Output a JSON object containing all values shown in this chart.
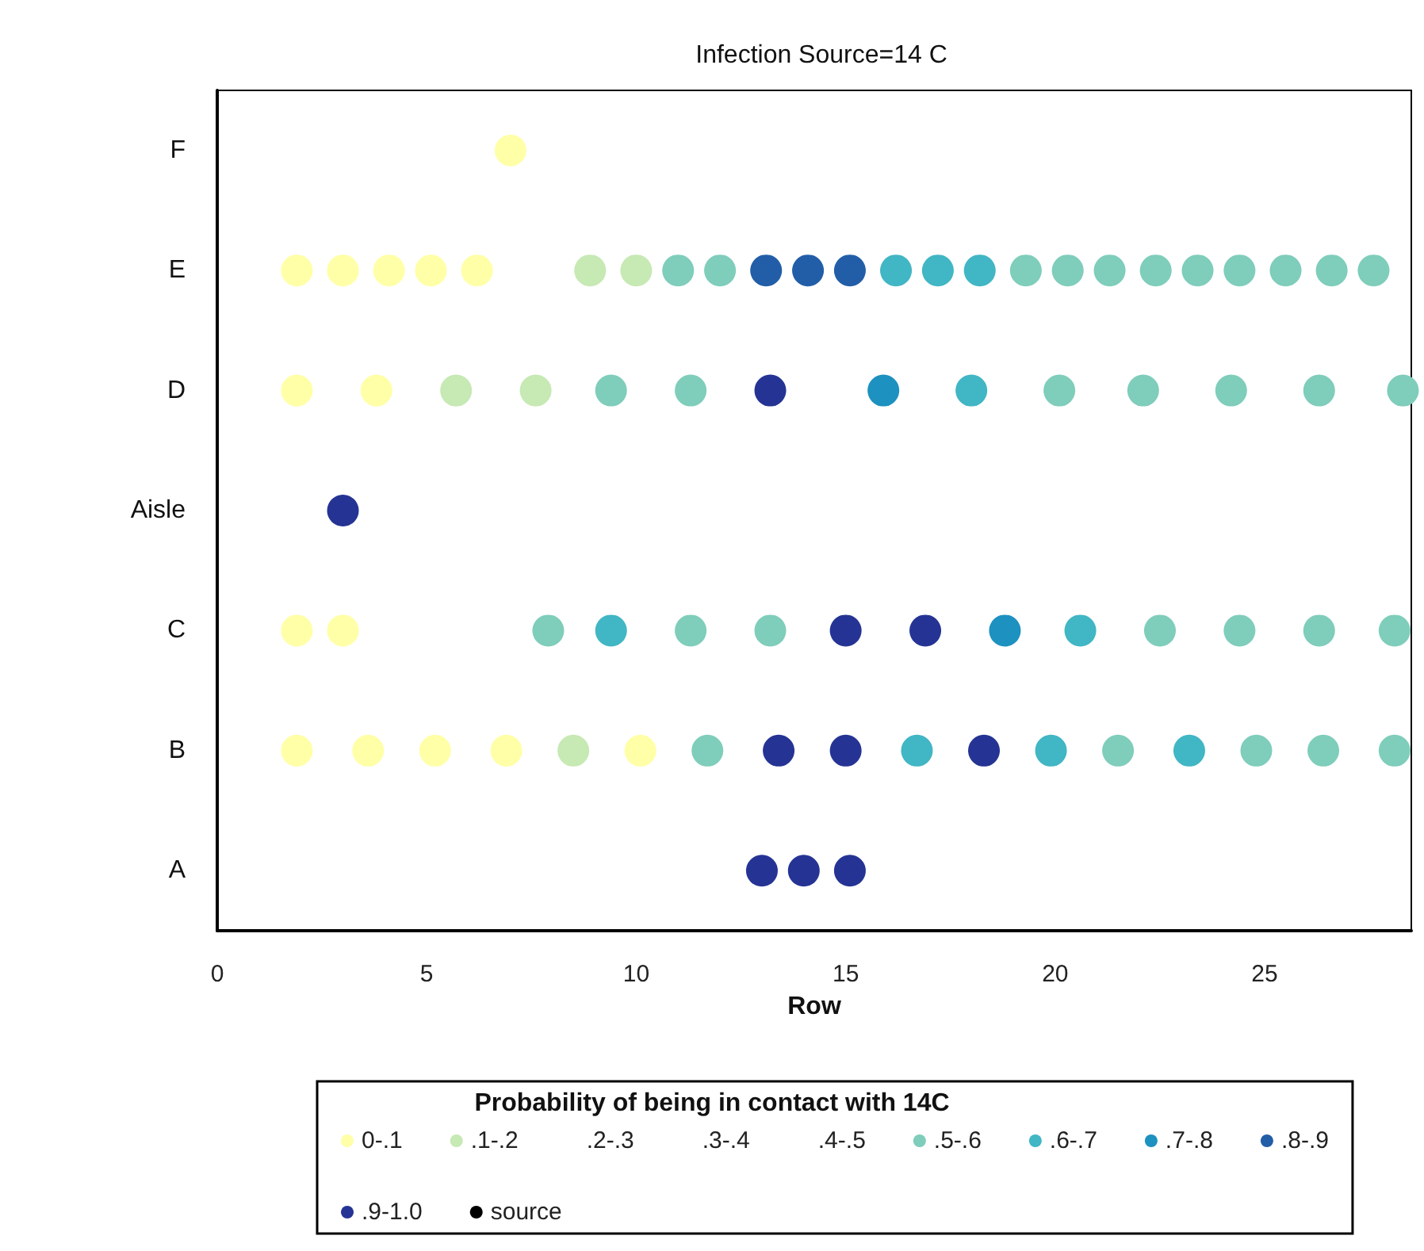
{
  "chart_data": {
    "type": "scatter",
    "orientation": "horizontal",
    "title": "Infection Source=14 C",
    "xlabel": "Row",
    "legend_title": "Probability of being in contact with 14C",
    "categories": [
      "F",
      "E",
      "D",
      "Aisle",
      "C",
      "B",
      "A"
    ],
    "xlim": [
      0,
      28.5
    ],
    "xticks": [
      0,
      5,
      10,
      15,
      20,
      25
    ],
    "grid": false,
    "legend": "bottom",
    "marker": "circle",
    "series": [
      {
        "name": "0-.1",
        "color": "#ffffa8",
        "values": [
          7.0,
          1.9,
          1.9,
          null,
          1.9,
          1.9,
          null
        ]
      },
      {
        "color": "#ffffa8",
        "values": [
          null,
          3.0,
          3.8,
          null,
          3.0,
          3.6,
          null
        ]
      },
      {
        "color": "#ffffa8",
        "values": [
          null,
          4.1,
          null,
          null,
          null,
          5.2,
          null
        ]
      },
      {
        "color": "#ffffa8",
        "values": [
          null,
          5.1,
          null,
          null,
          null,
          6.9,
          null
        ]
      },
      {
        "color": "#ffffa8",
        "values": [
          null,
          6.2,
          null,
          null,
          null,
          10.1,
          null
        ]
      },
      {
        "name": ".1-.2",
        "color": "#c7e9b4",
        "values": [
          null,
          8.9,
          5.7,
          null,
          null,
          8.5,
          null
        ]
      },
      {
        "color": "#c7e9b4",
        "values": [
          null,
          10.0,
          7.6,
          null,
          null,
          null,
          null
        ]
      },
      {
        "name": ".2-.3",
        "values": [
          null,
          null,
          null,
          null,
          null,
          null,
          null
        ]
      },
      {
        "name": ".3-.4",
        "values": [
          null,
          null,
          null,
          null,
          null,
          null,
          null
        ]
      },
      {
        "name": ".4-.5",
        "values": [
          null,
          null,
          null,
          null,
          null,
          null,
          null
        ]
      },
      {
        "name": ".5-.6",
        "color": "#7fcdbb",
        "values": [
          null,
          11.0,
          9.4,
          null,
          7.9,
          11.7,
          null
        ]
      },
      {
        "color": "#7fcdbb",
        "values": [
          null,
          12.0,
          11.3,
          null,
          11.3,
          21.5,
          null
        ]
      },
      {
        "color": "#7fcdbb",
        "values": [
          null,
          19.3,
          20.1,
          null,
          13.2,
          24.8,
          null
        ]
      },
      {
        "color": "#7fcdbb",
        "values": [
          null,
          20.3,
          22.1,
          null,
          22.5,
          26.4,
          null
        ]
      },
      {
        "color": "#7fcdbb",
        "values": [
          null,
          21.3,
          24.2,
          null,
          24.4,
          28.1,
          null
        ]
      },
      {
        "color": "#7fcdbb",
        "values": [
          null,
          22.4,
          26.3,
          null,
          26.3,
          null,
          null
        ]
      },
      {
        "color": "#7fcdbb",
        "values": [
          null,
          23.4,
          28.3,
          null,
          28.1,
          null,
          null
        ]
      },
      {
        "color": "#7fcdbb",
        "values": [
          null,
          24.4,
          null,
          null,
          null,
          null,
          null
        ]
      },
      {
        "color": "#7fcdbb",
        "values": [
          null,
          25.5,
          null,
          null,
          null,
          null,
          null
        ]
      },
      {
        "color": "#7fcdbb",
        "values": [
          null,
          26.6,
          null,
          null,
          null,
          null,
          null
        ]
      },
      {
        "color": "#7fcdbb",
        "values": [
          null,
          27.6,
          null,
          null,
          null,
          null,
          null
        ]
      },
      {
        "name": ".6-.7",
        "color": "#41b6c4",
        "values": [
          null,
          16.2,
          18.0,
          null,
          9.4,
          16.7,
          null
        ]
      },
      {
        "color": "#41b6c4",
        "values": [
          null,
          17.2,
          null,
          null,
          20.6,
          19.9,
          null
        ]
      },
      {
        "color": "#41b6c4",
        "values": [
          null,
          18.2,
          null,
          null,
          null,
          23.2,
          null
        ]
      },
      {
        "name": ".7-.8",
        "color": "#1d91c0",
        "values": [
          null,
          null,
          15.9,
          null,
          18.8,
          null,
          null
        ]
      },
      {
        "name": ".8-.9",
        "color": "#225ea8",
        "values": [
          null,
          13.1,
          null,
          null,
          null,
          null,
          null
        ]
      },
      {
        "color": "#225ea8",
        "values": [
          null,
          14.1,
          null,
          null,
          null,
          null,
          null
        ]
      },
      {
        "color": "#225ea8",
        "values": [
          null,
          15.1,
          null,
          null,
          null,
          null,
          null
        ]
      },
      {
        "name": ".9-1.0",
        "color": "#253494",
        "values": [
          null,
          null,
          13.2,
          3.0,
          15.0,
          13.4,
          13.0
        ]
      },
      {
        "color": "#253494",
        "values": [
          null,
          null,
          null,
          null,
          16.9,
          15.0,
          14.0
        ]
      },
      {
        "color": "#253494",
        "values": [
          null,
          null,
          null,
          null,
          null,
          18.3,
          15.1
        ]
      },
      {
        "name": "source",
        "color": "#000000",
        "values": [
          null,
          null,
          null,
          null,
          null,
          null,
          null
        ]
      }
    ]
  }
}
